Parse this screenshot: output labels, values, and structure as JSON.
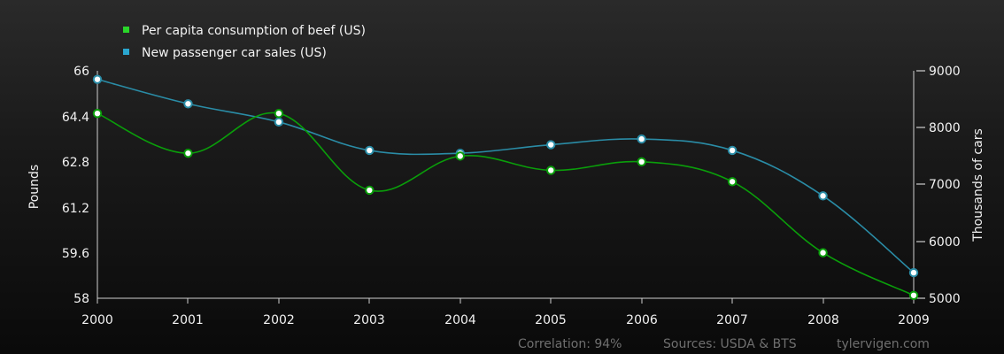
{
  "chart_data": {
    "type": "line",
    "x": [
      2000,
      2001,
      2002,
      2003,
      2004,
      2005,
      2006,
      2007,
      2008,
      2009
    ],
    "xlim": [
      2000,
      2009
    ],
    "x_tick_labels": [
      "2000",
      "2001",
      "2002",
      "2003",
      "2004",
      "2005",
      "2006",
      "2007",
      "2008",
      "2009"
    ],
    "y_left": {
      "label": "Pounds",
      "ylim": [
        58,
        66
      ],
      "ticks": [
        "66",
        "64.4",
        "62.8",
        "61.2",
        "59.6",
        "58"
      ]
    },
    "y_right": {
      "label": "Thousands of cars",
      "ylim": [
        5000,
        9000
      ],
      "ticks": [
        "9000",
        "8000",
        "7000",
        "6000",
        "5000"
      ]
    },
    "series": [
      {
        "name": "Per capita consumption of beef (US)",
        "axis": "left",
        "color": "#0a9e0a",
        "legend_color": "#2ad62a",
        "values": [
          64.5,
          63.1,
          64.5,
          61.8,
          63.0,
          62.5,
          62.8,
          62.1,
          59.6,
          58.1
        ]
      },
      {
        "name": "New passenger car sales (US)",
        "axis": "right",
        "color": "#2a8ca6",
        "legend_color": "#2aa6cf",
        "values": [
          8850,
          8420,
          8100,
          7600,
          7550,
          7700,
          7800,
          7600,
          6800,
          5450
        ]
      }
    ],
    "legend": {
      "placement": "top-left",
      "items": [
        "Per capita consumption of beef (US)",
        "New passenger car sales (US)"
      ]
    },
    "footer": {
      "correlation": "Correlation: 94%",
      "sources": "Sources: USDA & BTS",
      "site": "tylervigen.com"
    },
    "grid": false
  }
}
